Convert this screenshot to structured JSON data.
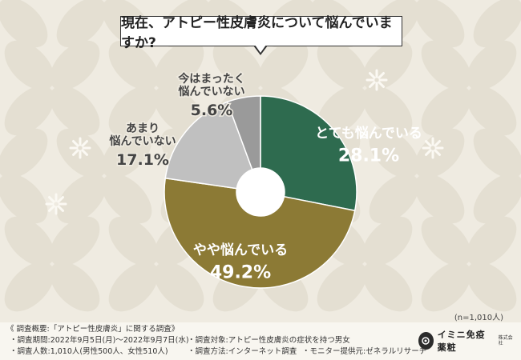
{
  "question": "現在、アトピー性皮膚炎について悩んでいますか?",
  "sample_size": "(n=1,010人)",
  "footer": {
    "title": "《 調査概要:「アトピー性皮膚炎」に関する調査》",
    "period": "・調査期間:2022年9月5日(月)〜2022年9月7日(水)",
    "respondents": "・調査人数:1,010人(男性500人、女性510人)",
    "target": "・調査対象:アトピー性皮膚炎の症状を持つ男女",
    "method": "・調査方法:インターネット調査",
    "monitor": "・モニター提供元:ゼネラルリサーチ"
  },
  "logo": {
    "name": "イミニ免疫薬粧",
    "sub": "株式会社"
  },
  "colors": {
    "background": "#efebe1",
    "slice_very": "#2e6b4f",
    "slice_somewhat": "#8c7a35",
    "slice_not_much": "#c0c0c0",
    "slice_not_at_all": "#9a9a9a",
    "hole": "#ffffff"
  },
  "chart_data": {
    "type": "pie",
    "categories": [
      "とても悩んでいる",
      "やや悩んでいる",
      "あまり悩んでいない",
      "今はまったく悩んでいない"
    ],
    "values": [
      28.1,
      49.2,
      17.1,
      5.6
    ],
    "value_labels": [
      "28.1%",
      "49.2%",
      "17.1%",
      "5.6%"
    ],
    "label_lines": [
      [
        "とても悩んでいる"
      ],
      [
        "やや悩んでいる"
      ],
      [
        "あまり",
        "悩んでいない"
      ],
      [
        "今はまったく",
        "悩んでいない"
      ]
    ],
    "donut": true,
    "start_angle": "12 o'clock",
    "direction": "clockwise"
  }
}
